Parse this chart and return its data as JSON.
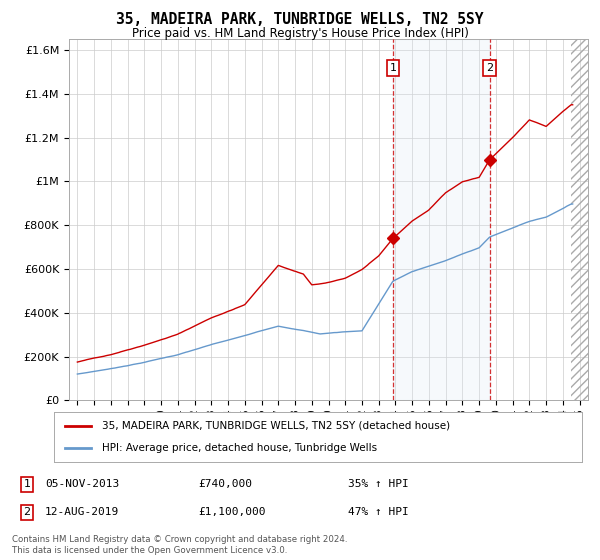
{
  "title": "35, MADEIRA PARK, TUNBRIDGE WELLS, TN2 5SY",
  "subtitle": "Price paid vs. HM Land Registry's House Price Index (HPI)",
  "legend_line1": "35, MADEIRA PARK, TUNBRIDGE WELLS, TN2 5SY (detached house)",
  "legend_line2": "HPI: Average price, detached house, Tunbridge Wells",
  "annotation1_label": "1",
  "annotation1_date": "05-NOV-2013",
  "annotation1_price": "£740,000",
  "annotation1_hpi": "35% ↑ HPI",
  "annotation1_year": 2013.85,
  "annotation1_value": 740000,
  "annotation2_label": "2",
  "annotation2_date": "12-AUG-2019",
  "annotation2_price": "£1,100,000",
  "annotation2_hpi": "47% ↑ HPI",
  "annotation2_year": 2019.62,
  "annotation2_value": 1100000,
  "footer1": "Contains HM Land Registry data © Crown copyright and database right 2024.",
  "footer2": "This data is licensed under the Open Government Licence v3.0.",
  "red_color": "#cc0000",
  "blue_color": "#6699cc",
  "shade_color": "#dde8f5",
  "background_color": "#ffffff",
  "plot_bg_color": "#ffffff",
  "grid_color": "#cccccc",
  "ylim_min": 0,
  "ylim_max": 1650000,
  "xlim_min": 1994.5,
  "xlim_max": 2025.5,
  "data_end_year": 2024.5
}
